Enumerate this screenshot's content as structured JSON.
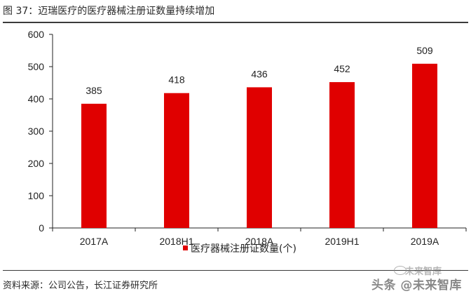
{
  "title": "图 37：迈瑞医疗的医疗器械注册证数量持续增加",
  "source": "资料来源：公司公告，长江证券研究所",
  "watermark": "头条 @未来智库",
  "watermark_logo": "未来智库",
  "colors": {
    "bar": "#e00000",
    "axis": "#222222"
  },
  "chart_data": {
    "type": "bar",
    "title": "图 37：迈瑞医疗的医疗器械注册证数量持续增加",
    "categories": [
      "2017A",
      "2018H1",
      "2018A",
      "2019H1",
      "2019A"
    ],
    "series": [
      {
        "name": "医疗器械注册证数量(个)",
        "values": [
          385,
          418,
          436,
          452,
          509
        ]
      }
    ],
    "xlabel": "",
    "ylabel": "",
    "ylim": [
      0,
      600
    ],
    "yticks": [
      0,
      100,
      200,
      300,
      400,
      500,
      600
    ],
    "grid": false,
    "legend": "bottom-center"
  }
}
